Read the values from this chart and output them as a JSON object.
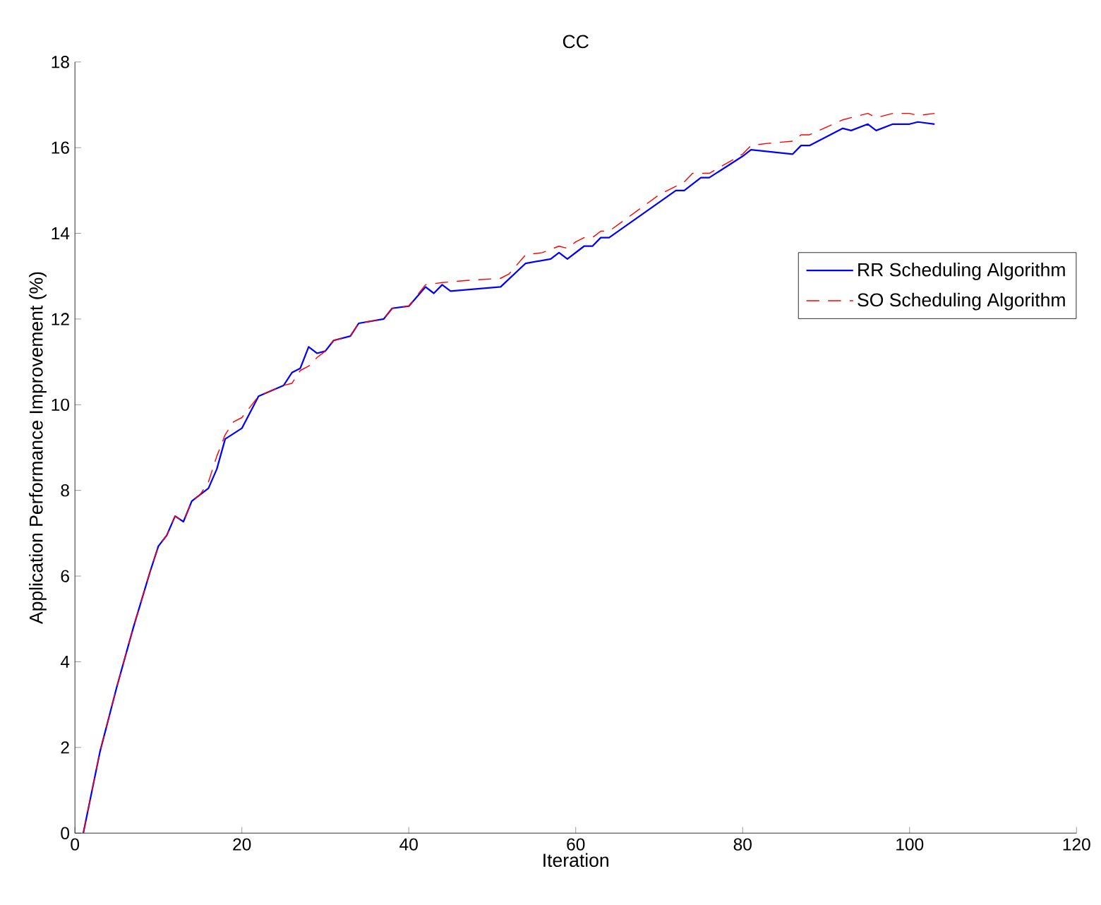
{
  "chart_data": {
    "type": "line",
    "title": "CC",
    "xlabel": "Iteration",
    "ylabel": "Application Performance Improvement (%)",
    "xlim": [
      0,
      120
    ],
    "ylim": [
      0,
      18
    ],
    "xticks": [
      0,
      20,
      40,
      60,
      80,
      100,
      120
    ],
    "yticks": [
      0,
      2,
      4,
      6,
      8,
      10,
      12,
      14,
      16,
      18
    ],
    "legend": "right",
    "grid": false,
    "series": [
      {
        "name": "RR Scheduling Algorithm",
        "color": "#0000ff",
        "line_style": "solid",
        "x": [
          1,
          3,
          5,
          7,
          9,
          10,
          11,
          12,
          13,
          14,
          16,
          17,
          18,
          20,
          22,
          25,
          26,
          27,
          28,
          29,
          30,
          31,
          33,
          34,
          37,
          38,
          40,
          42,
          43,
          44,
          45,
          51,
          54,
          57,
          58,
          59,
          61,
          62,
          63,
          64,
          72,
          73,
          75,
          76,
          80,
          81,
          86,
          87,
          88,
          92,
          93,
          95,
          96,
          98,
          100,
          101,
          103
        ],
        "values": [
          0,
          1.9,
          3.4,
          4.8,
          6.1,
          6.7,
          6.95,
          7.4,
          7.27,
          7.75,
          8.05,
          8.5,
          9.2,
          9.45,
          10.2,
          10.45,
          10.75,
          10.85,
          11.35,
          11.2,
          11.25,
          11.5,
          11.6,
          11.9,
          12.0,
          12.25,
          12.3,
          12.75,
          12.6,
          12.8,
          12.65,
          12.75,
          13.3,
          13.4,
          13.55,
          13.4,
          13.7,
          13.7,
          13.9,
          13.9,
          15.0,
          15.0,
          15.3,
          15.3,
          15.8,
          15.95,
          15.85,
          16.05,
          16.05,
          16.45,
          16.4,
          16.55,
          16.4,
          16.55,
          16.55,
          16.6,
          16.55
        ]
      },
      {
        "name": "SO Scheduling Algorithm",
        "color": "#ff0000",
        "line_style": "dashed",
        "x": [
          1,
          3,
          5,
          7,
          9,
          10,
          11,
          12,
          13,
          14,
          15,
          16,
          17,
          18,
          19,
          20,
          22,
          25,
          26,
          27,
          28,
          29,
          30,
          31,
          33,
          34,
          37,
          38,
          40,
          42,
          44,
          47,
          51,
          52,
          54,
          56,
          58,
          59,
          60,
          61,
          62,
          63,
          64,
          70,
          72,
          73,
          74,
          76,
          80,
          81,
          83,
          86,
          87,
          88,
          92,
          93,
          95,
          96,
          98,
          100,
          101,
          103
        ],
        "values": [
          0,
          1.9,
          3.4,
          4.8,
          6.1,
          6.7,
          6.95,
          7.4,
          7.27,
          7.75,
          7.9,
          8.2,
          8.8,
          9.3,
          9.6,
          9.7,
          10.2,
          10.45,
          10.5,
          10.8,
          10.9,
          11.1,
          11.25,
          11.5,
          11.6,
          11.9,
          12.0,
          12.25,
          12.3,
          12.8,
          12.85,
          12.9,
          12.95,
          13.05,
          13.5,
          13.55,
          13.7,
          13.65,
          13.8,
          13.9,
          13.9,
          14.05,
          14.05,
          14.9,
          15.1,
          15.2,
          15.4,
          15.4,
          15.85,
          16.05,
          16.1,
          16.15,
          16.3,
          16.3,
          16.65,
          16.7,
          16.8,
          16.7,
          16.8,
          16.8,
          16.75,
          16.8
        ]
      }
    ]
  }
}
